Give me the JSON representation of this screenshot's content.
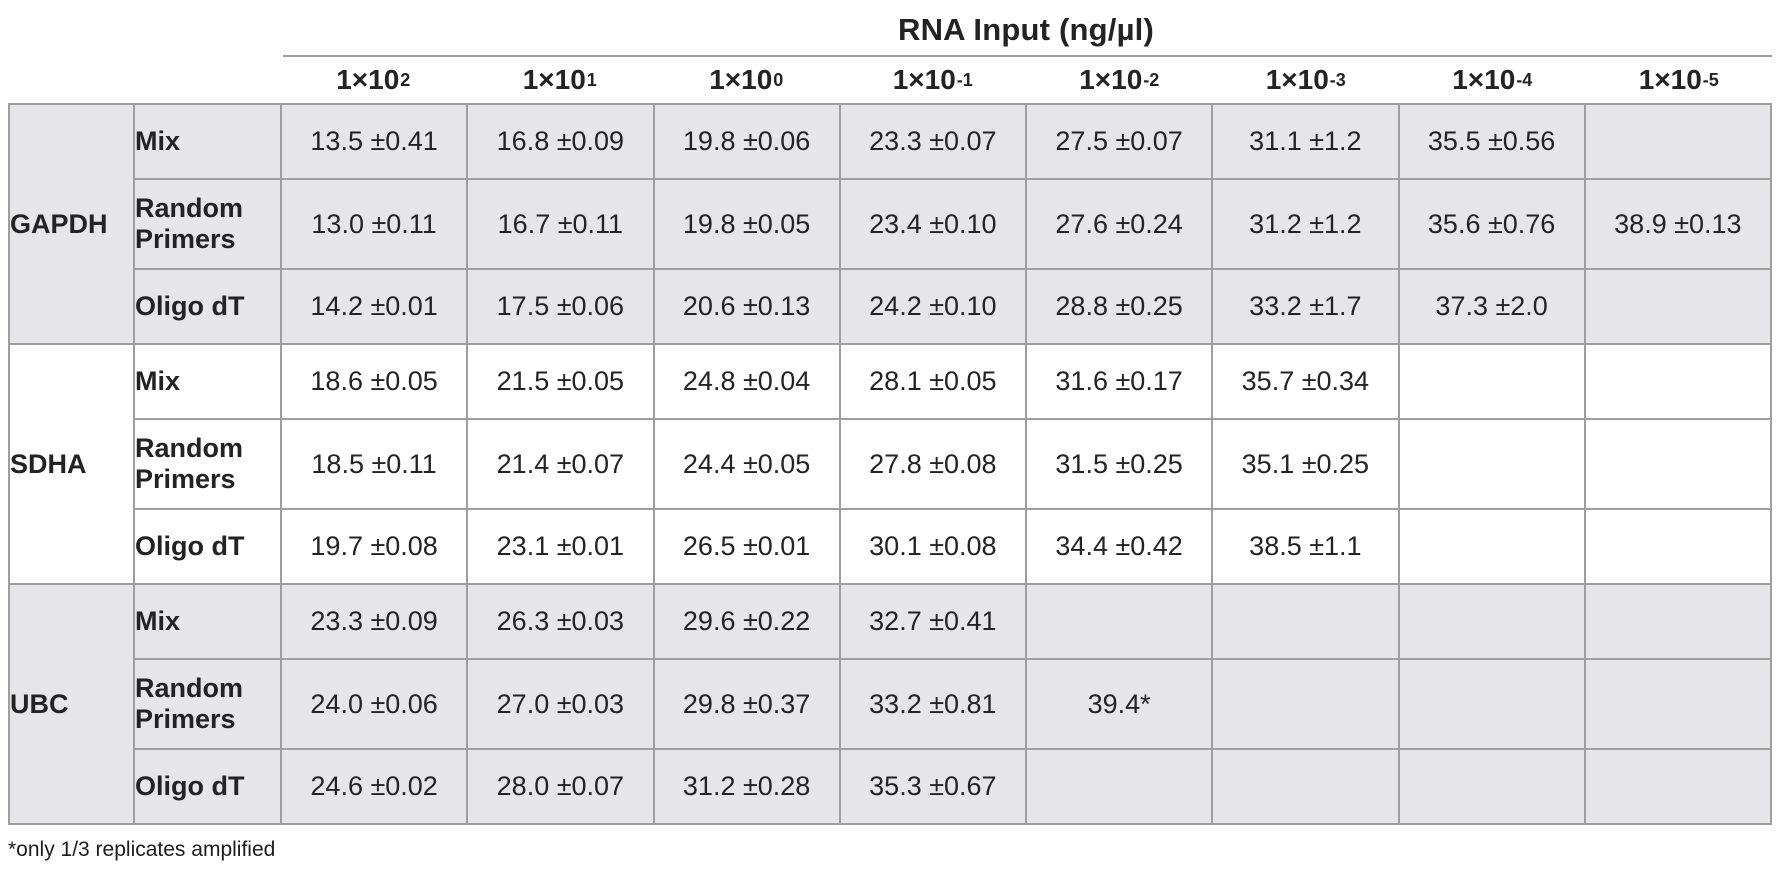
{
  "chart_data": {
    "type": "table",
    "title": "RNA Input (ng/µl)",
    "columns": [
      {
        "base": "1×10",
        "exp": "2"
      },
      {
        "base": "1×10",
        "exp": "1"
      },
      {
        "base": "1×10",
        "exp": "0"
      },
      {
        "base": "1×10",
        "exp": "-1"
      },
      {
        "base": "1×10",
        "exp": "-2"
      },
      {
        "base": "1×10",
        "exp": "-3"
      },
      {
        "base": "1×10",
        "exp": "-4"
      },
      {
        "base": "1×10",
        "exp": "-5"
      }
    ],
    "row_groups": [
      {
        "gene": "GAPDH",
        "shaded": true,
        "rows": [
          {
            "primer": "Mix",
            "values": [
              "13.5 ±0.41",
              "16.8 ±0.09",
              "19.8 ±0.06",
              "23.3 ±0.07",
              "27.5 ±0.07",
              "31.1 ±1.2",
              "35.5 ±0.56",
              ""
            ]
          },
          {
            "primer": "Random Primers",
            "values": [
              "13.0 ±0.11",
              "16.7 ±0.11",
              "19.8 ±0.05",
              "23.4 ±0.10",
              "27.6 ±0.24",
              "31.2 ±1.2",
              "35.6 ±0.76",
              "38.9 ±0.13"
            ]
          },
          {
            "primer": "Oligo dT",
            "values": [
              "14.2 ±0.01",
              "17.5 ±0.06",
              "20.6 ±0.13",
              "24.2 ±0.10",
              "28.8 ±0.25",
              "33.2 ±1.7",
              "37.3 ±2.0",
              ""
            ]
          }
        ]
      },
      {
        "gene": "SDHA",
        "shaded": false,
        "rows": [
          {
            "primer": "Mix",
            "values": [
              "18.6 ±0.05",
              "21.5 ±0.05",
              "24.8 ±0.04",
              "28.1 ±0.05",
              "31.6 ±0.17",
              "35.7 ±0.34",
              "",
              ""
            ]
          },
          {
            "primer": "Random Primers",
            "values": [
              "18.5 ±0.11",
              "21.4 ±0.07",
              "24.4 ±0.05",
              "27.8 ±0.08",
              "31.5 ±0.25",
              "35.1 ±0.25",
              "",
              ""
            ]
          },
          {
            "primer": "Oligo dT",
            "values": [
              "19.7 ±0.08",
              "23.1 ±0.01",
              "26.5 ±0.01",
              "30.1 ±0.08",
              "34.4 ±0.42",
              "38.5 ±1.1",
              "",
              ""
            ]
          }
        ]
      },
      {
        "gene": "UBC",
        "shaded": true,
        "rows": [
          {
            "primer": "Mix",
            "values": [
              "23.3 ±0.09",
              "26.3 ±0.03",
              "29.6 ±0.22",
              "32.7 ±0.41",
              "",
              "",
              "",
              ""
            ]
          },
          {
            "primer": "Random Primers",
            "values": [
              "24.0 ±0.06",
              "27.0 ±0.03",
              "29.8 ±0.37",
              "33.2 ±0.81",
              "39.4*",
              "",
              "",
              ""
            ]
          },
          {
            "primer": "Oligo dT",
            "values": [
              "24.6 ±0.02",
              "28.0 ±0.07",
              "31.2 ±0.28",
              "35.3 ±0.67",
              "",
              "",
              "",
              ""
            ]
          }
        ]
      }
    ],
    "footnote": "*only 1/3 replicates amplified",
    "colors": {
      "shaded_bg": "#e6e6e8",
      "border": "#9e9e9e",
      "text": "#232323"
    }
  }
}
